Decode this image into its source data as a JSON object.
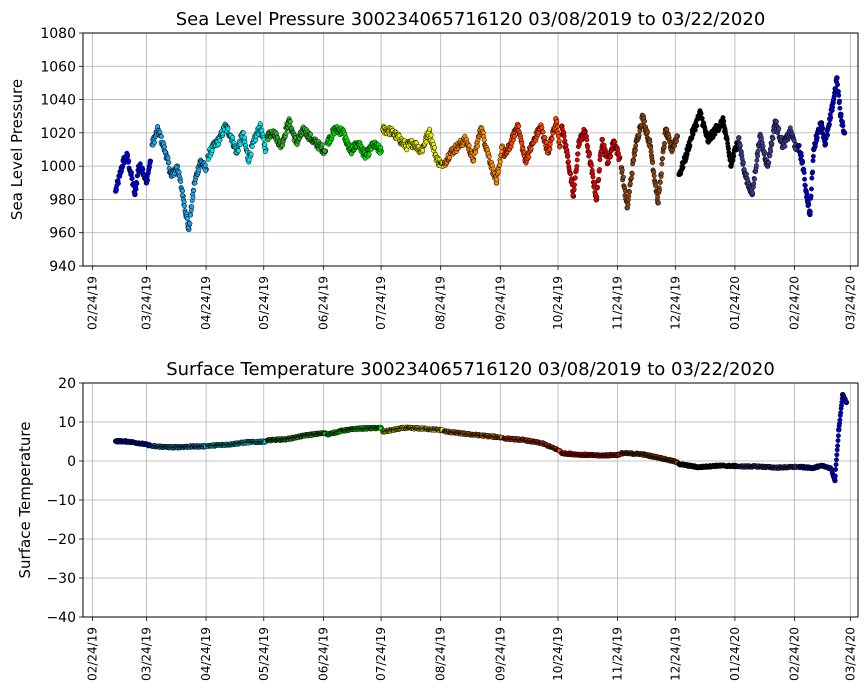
{
  "chart_data": [
    {
      "type": "scatter",
      "title": "Sea Level Pressure 300234065716120  03/08/2019 to 03/22/2020",
      "xlabel": "",
      "ylabel": "Sea Level Pressure",
      "xlim": [
        "2019-02-19",
        "2020-03-28"
      ],
      "ylim": [
        940,
        1080
      ],
      "grid": true,
      "x_ticks": [
        "02/24/19",
        "03/24/19",
        "04/24/19",
        "05/24/19",
        "06/24/19",
        "07/24/19",
        "08/24/19",
        "09/24/19",
        "10/24/19",
        "11/24/19",
        "12/24/19",
        "01/24/20",
        "02/24/20",
        "03/24/20"
      ],
      "y_ticks": [
        940,
        960,
        980,
        1000,
        1020,
        1040,
        1060,
        1080
      ],
      "color_by_month": true,
      "series": [
        {
          "color": "#0000ee",
          "x": [
            "2019-03-08",
            "2019-03-10",
            "2019-03-12",
            "2019-03-14",
            "2019-03-16",
            "2019-03-18",
            "2019-03-20",
            "2019-03-22",
            "2019-03-24",
            "2019-03-26"
          ],
          "y": [
            985,
            994,
            1003,
            1006,
            995,
            983,
            1000,
            998,
            990,
            1003
          ]
        },
        {
          "color": "#1fa5ee",
          "x": [
            "2019-03-27",
            "2019-03-30",
            "2019-04-03",
            "2019-04-06",
            "2019-04-09",
            "2019-04-12",
            "2019-04-15",
            "2019-04-18",
            "2019-04-21",
            "2019-04-24"
          ],
          "y": [
            1013,
            1022,
            1008,
            994,
            1000,
            982,
            962,
            990,
            1003,
            998
          ]
        },
        {
          "color": "#00e5ee",
          "x": [
            "2019-04-25",
            "2019-04-28",
            "2019-05-01",
            "2019-05-04",
            "2019-05-07",
            "2019-05-10",
            "2019-05-13",
            "2019-05-16",
            "2019-05-19",
            "2019-05-22",
            "2019-05-25"
          ],
          "y": [
            1006,
            1012,
            1016,
            1024,
            1018,
            1008,
            1020,
            1004,
            1015,
            1024,
            1010
          ]
        },
        {
          "color": "#2eb82e",
          "x": [
            "2019-05-26",
            "2019-05-29",
            "2019-06-02",
            "2019-06-06",
            "2019-06-10",
            "2019-06-14",
            "2019-06-18",
            "2019-06-22",
            "2019-06-25"
          ],
          "y": [
            1018,
            1021,
            1012,
            1027,
            1014,
            1022,
            1016,
            1012,
            1009
          ]
        },
        {
          "color": "#00e600",
          "x": [
            "2019-06-26",
            "2019-06-30",
            "2019-07-04",
            "2019-07-08",
            "2019-07-12",
            "2019-07-16",
            "2019-07-20",
            "2019-07-24"
          ],
          "y": [
            1014,
            1022,
            1021,
            1009,
            1014,
            1006,
            1013,
            1009
          ]
        },
        {
          "color": "#eeee00",
          "x": [
            "2019-07-25",
            "2019-07-29",
            "2019-08-02",
            "2019-08-06",
            "2019-08-10",
            "2019-08-14",
            "2019-08-18",
            "2019-08-22",
            "2019-08-25"
          ],
          "y": [
            1022,
            1021,
            1017,
            1012,
            1014,
            1009,
            1021,
            1004,
            1000
          ]
        },
        {
          "color": "#ff8c00",
          "x": [
            "2019-08-26",
            "2019-08-29",
            "2019-09-02",
            "2019-09-06",
            "2019-09-10",
            "2019-09-14",
            "2019-09-18",
            "2019-09-22",
            "2019-09-25"
          ],
          "y": [
            1002,
            1008,
            1012,
            1016,
            1004,
            1023,
            1006,
            990,
            1012
          ]
        },
        {
          "color": "#ff4500",
          "x": [
            "2019-09-26",
            "2019-09-29",
            "2019-10-03",
            "2019-10-07",
            "2019-10-11",
            "2019-10-15",
            "2019-10-19",
            "2019-10-23",
            "2019-10-25"
          ],
          "y": [
            1006,
            1012,
            1025,
            1003,
            1014,
            1024,
            1008,
            1028,
            1012
          ]
        },
        {
          "color": "#e60000",
          "x": [
            "2019-10-26",
            "2019-10-29",
            "2019-11-01",
            "2019-11-04",
            "2019-11-07",
            "2019-11-10",
            "2019-11-13",
            "2019-11-16",
            "2019-11-19",
            "2019-11-22",
            "2019-11-25"
          ],
          "y": [
            1024,
            1006,
            982,
            1015,
            1021,
            1001,
            980,
            1016,
            1002,
            1015,
            1005
          ]
        },
        {
          "color": "#8b4513",
          "x": [
            "2019-11-26",
            "2019-11-29",
            "2019-12-03",
            "2019-12-07",
            "2019-12-11",
            "2019-12-15",
            "2019-12-19",
            "2019-12-22",
            "2019-12-25"
          ],
          "y": [
            999,
            975,
            1010,
            1030,
            1012,
            978,
            1022,
            1010,
            1018
          ]
        },
        {
          "color": "#000000",
          "x": [
            "2019-12-26",
            "2019-12-29",
            "2020-01-02",
            "2020-01-06",
            "2020-01-10",
            "2020-01-14",
            "2020-01-18",
            "2020-01-22",
            "2020-01-25"
          ],
          "y": [
            995,
            1004,
            1020,
            1032,
            1015,
            1022,
            1027,
            1000,
            1014
          ]
        },
        {
          "color": "#3b3b8f",
          "x": [
            "2020-01-26",
            "2020-01-29",
            "2020-02-02",
            "2020-02-06",
            "2020-02-10",
            "2020-02-14",
            "2020-02-18",
            "2020-02-22",
            "2020-02-25"
          ],
          "y": [
            1017,
            996,
            983,
            1018,
            1000,
            1027,
            1012,
            1021,
            1010
          ]
        },
        {
          "color": "#0000cd",
          "x": [
            "2020-02-26",
            "2020-02-28",
            "2020-03-01",
            "2020-03-03",
            "2020-03-05",
            "2020-03-07",
            "2020-03-09",
            "2020-03-11",
            "2020-03-13",
            "2020-03-15",
            "2020-03-17",
            "2020-03-19",
            "2020-03-21"
          ],
          "y": [
            1012,
            1003,
            985,
            971,
            1010,
            1020,
            1026,
            1013,
            1025,
            1038,
            1053,
            1030,
            1020
          ]
        }
      ]
    },
    {
      "type": "scatter",
      "title": "Surface Temperature 300234065716120  03/08/2019 to 03/22/2020",
      "xlabel": "",
      "ylabel": "Surface Temperature",
      "xlim": [
        "2019-02-19",
        "2020-03-28"
      ],
      "ylim": [
        -40,
        20
      ],
      "grid": true,
      "x_ticks": [
        "02/24/19",
        "03/24/19",
        "04/24/19",
        "05/24/19",
        "06/24/19",
        "07/24/19",
        "08/24/19",
        "09/24/19",
        "10/24/19",
        "11/24/19",
        "12/24/19",
        "01/24/20",
        "02/24/20",
        "03/24/20"
      ],
      "y_ticks": [
        -40,
        -30,
        -20,
        -10,
        0,
        10,
        20
      ],
      "color_by_month": true,
      "series": [
        {
          "color": "#0000ee",
          "x": [
            "2019-03-08",
            "2019-03-14",
            "2019-03-20",
            "2019-03-26"
          ],
          "y": [
            5.1,
            5.0,
            4.6,
            4.0
          ]
        },
        {
          "color": "#1fa5ee",
          "x": [
            "2019-03-27",
            "2019-04-06",
            "2019-04-16",
            "2019-04-24"
          ],
          "y": [
            3.8,
            3.5,
            3.7,
            3.8
          ]
        },
        {
          "color": "#00e5ee",
          "x": [
            "2019-04-25",
            "2019-05-05",
            "2019-05-15",
            "2019-05-25"
          ],
          "y": [
            3.9,
            4.2,
            4.8,
            5.0
          ]
        },
        {
          "color": "#2eb82e",
          "x": [
            "2019-05-26",
            "2019-06-05",
            "2019-06-15",
            "2019-06-25"
          ],
          "y": [
            5.3,
            5.6,
            6.6,
            7.2
          ]
        },
        {
          "color": "#00e600",
          "x": [
            "2019-06-26",
            "2019-07-04",
            "2019-07-12",
            "2019-07-24"
          ],
          "y": [
            6.8,
            7.8,
            8.3,
            8.5
          ]
        },
        {
          "color": "#eeee00",
          "x": [
            "2019-07-25",
            "2019-08-05",
            "2019-08-15",
            "2019-08-25"
          ],
          "y": [
            7.5,
            8.5,
            8.3,
            7.9
          ]
        },
        {
          "color": "#ff8c00",
          "x": [
            "2019-08-26",
            "2019-09-05",
            "2019-09-15",
            "2019-09-25"
          ],
          "y": [
            7.6,
            7.0,
            6.5,
            6.0
          ]
        },
        {
          "color": "#ff4500",
          "x": [
            "2019-09-26",
            "2019-10-06",
            "2019-10-16",
            "2019-10-25"
          ],
          "y": [
            5.8,
            5.4,
            4.5,
            2.6
          ]
        },
        {
          "color": "#e60000",
          "x": [
            "2019-10-26",
            "2019-11-05",
            "2019-11-15",
            "2019-11-25"
          ],
          "y": [
            2.0,
            1.6,
            1.4,
            1.6
          ]
        },
        {
          "color": "#8b4513",
          "x": [
            "2019-11-26",
            "2019-12-06",
            "2019-12-16",
            "2019-12-25"
          ],
          "y": [
            2.0,
            1.8,
            0.8,
            -0.3
          ]
        },
        {
          "color": "#000000",
          "x": [
            "2019-12-26",
            "2020-01-05",
            "2020-01-15",
            "2020-01-25"
          ],
          "y": [
            -0.8,
            -1.6,
            -1.2,
            -1.3
          ]
        },
        {
          "color": "#3b3b8f",
          "x": [
            "2020-01-26",
            "2020-02-05",
            "2020-02-15",
            "2020-02-25"
          ],
          "y": [
            -1.4,
            -1.4,
            -1.7,
            -1.5
          ]
        },
        {
          "color": "#0000cd",
          "x": [
            "2020-02-26",
            "2020-03-04",
            "2020-03-10",
            "2020-03-14",
            "2020-03-16",
            "2020-03-18",
            "2020-03-20",
            "2020-03-22"
          ],
          "y": [
            -1.5,
            -1.8,
            -1.2,
            -2.0,
            -5.0,
            8.0,
            17.0,
            15.0
          ]
        }
      ]
    }
  ]
}
